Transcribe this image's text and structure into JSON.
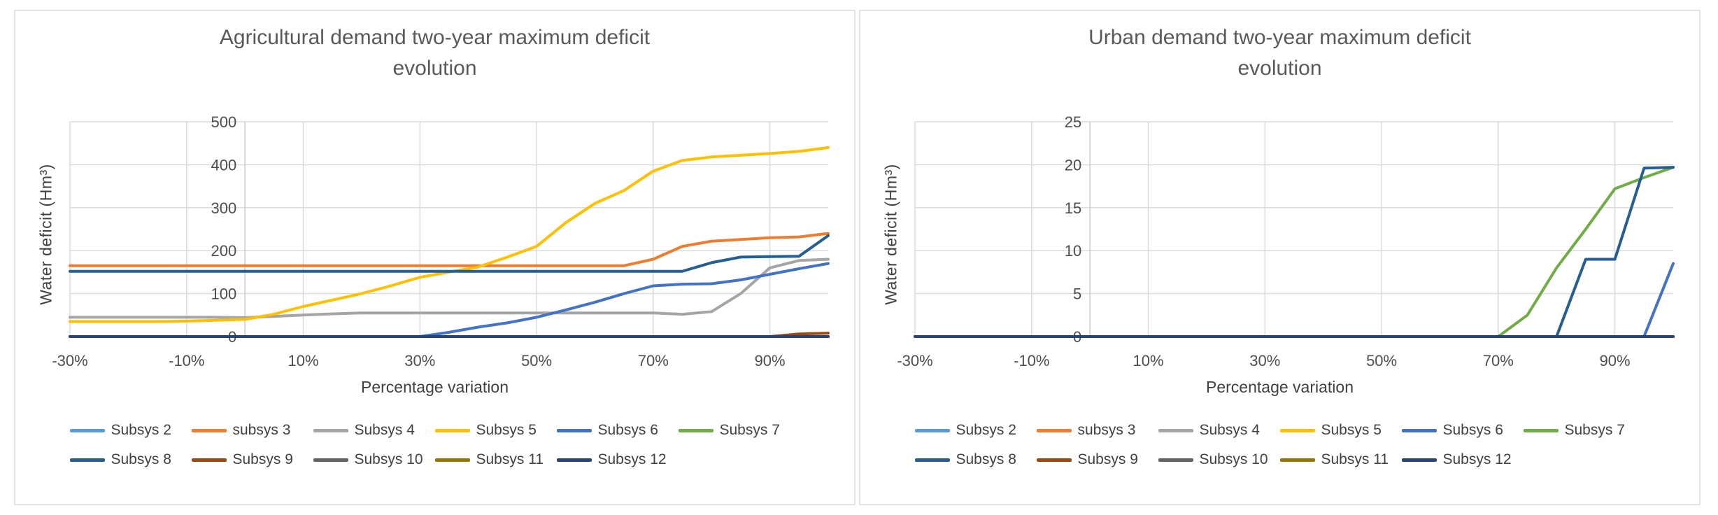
{
  "chart_data": [
    {
      "type": "line",
      "title": "Agricultural demand two-year maximum deficit evolution",
      "title_lines": [
        "Agricultural demand two-year maximum deficit",
        "evolution"
      ],
      "xlabel": "Percentage variation",
      "ylabel": "Water deficit (Hm³)",
      "ylim": [
        0,
        500
      ],
      "y_ticks": [
        0,
        100,
        200,
        300,
        400,
        500
      ],
      "x_tick_labels": [
        "-30%",
        "-10%",
        "10%",
        "30%",
        "50%",
        "70%",
        "90%"
      ],
      "y_axis_at": "0%",
      "grid": true,
      "legend_position": "bottom",
      "categories": [
        "-30%",
        "-25%",
        "-20%",
        "-15%",
        "-10%",
        "-5%",
        "0%",
        "5%",
        "10%",
        "15%",
        "20%",
        "25%",
        "30%",
        "35%",
        "40%",
        "45%",
        "50%",
        "55%",
        "60%",
        "65%",
        "70%",
        "75%",
        "80%",
        "85%",
        "90%",
        "95%",
        "100%"
      ],
      "series": [
        {
          "name": "Subsys 2",
          "color": "#5B9BD5",
          "values": [
            0,
            0,
            0,
            0,
            0,
            0,
            0,
            0,
            0,
            0,
            0,
            0,
            0,
            0,
            0,
            0,
            0,
            0,
            0,
            0,
            0,
            0,
            0,
            0,
            0,
            0,
            0
          ]
        },
        {
          "name": "subsys 3",
          "color": "#ED7D31",
          "values": [
            165,
            165,
            165,
            165,
            165,
            165,
            165,
            165,
            165,
            165,
            165,
            165,
            165,
            165,
            165,
            165,
            165,
            165,
            165,
            165,
            180,
            210,
            222,
            226,
            230,
            232,
            240
          ]
        },
        {
          "name": "Subsys 4",
          "color": "#A5A5A5",
          "values": [
            45,
            45,
            45,
            45,
            45,
            45,
            44,
            47,
            50,
            53,
            55,
            55,
            55,
            55,
            55,
            55,
            55,
            55,
            55,
            55,
            55,
            52,
            58,
            100,
            160,
            177,
            180
          ]
        },
        {
          "name": "Subsys 5",
          "color": "#FFC000",
          "values": [
            35,
            35,
            35,
            35,
            36,
            38,
            40,
            52,
            70,
            85,
            100,
            118,
            138,
            150,
            162,
            185,
            210,
            265,
            310,
            340,
            385,
            410,
            418,
            422,
            426,
            431,
            440
          ]
        },
        {
          "name": "Subsys 6",
          "color": "#4472C4",
          "values": [
            0,
            0,
            0,
            0,
            0,
            0,
            0,
            0,
            0,
            0,
            0,
            0,
            0,
            10,
            22,
            32,
            45,
            62,
            80,
            100,
            118,
            122,
            123,
            132,
            145,
            158,
            170
          ]
        },
        {
          "name": "Subsys 7",
          "color": "#70AD47",
          "values": [
            0,
            0,
            0,
            0,
            0,
            0,
            0,
            0,
            0,
            0,
            0,
            0,
            0,
            0,
            0,
            0,
            0,
            0,
            0,
            0,
            0,
            0,
            0,
            0,
            0,
            0,
            0
          ]
        },
        {
          "name": "Subsys 8",
          "color": "#255E91",
          "values": [
            152,
            152,
            152,
            152,
            152,
            152,
            152,
            152,
            152,
            152,
            152,
            152,
            152,
            152,
            152,
            152,
            152,
            152,
            152,
            152,
            152,
            152,
            172,
            185,
            186,
            187,
            235
          ]
        },
        {
          "name": "Subsys 9",
          "color": "#9E480E",
          "values": [
            0,
            0,
            0,
            0,
            0,
            0,
            0,
            0,
            0,
            0,
            0,
            0,
            0,
            0,
            0,
            0,
            0,
            0,
            0,
            0,
            0,
            0,
            0,
            0,
            0,
            6,
            8
          ]
        },
        {
          "name": "Subsys 10",
          "color": "#636363",
          "values": [
            0,
            0,
            0,
            0,
            0,
            0,
            0,
            0,
            0,
            0,
            0,
            0,
            0,
            0,
            0,
            0,
            0,
            0,
            0,
            0,
            0,
            0,
            0,
            0,
            0,
            0,
            0
          ]
        },
        {
          "name": "Subsys 11",
          "color": "#997300",
          "values": [
            0,
            0,
            0,
            0,
            0,
            0,
            0,
            0,
            0,
            0,
            0,
            0,
            0,
            0,
            0,
            0,
            0,
            0,
            0,
            0,
            0,
            0,
            0,
            0,
            0,
            0,
            0
          ]
        },
        {
          "name": "Subsys 12",
          "color": "#264478",
          "values": [
            0,
            0,
            0,
            0,
            0,
            0,
            0,
            0,
            0,
            0,
            0,
            0,
            0,
            0,
            0,
            0,
            0,
            0,
            0,
            0,
            0,
            0,
            0,
            0,
            0,
            0,
            0
          ]
        }
      ]
    },
    {
      "type": "line",
      "title": "Urban demand two-year maximum deficit evolution",
      "title_lines": [
        "Urban demand two-year maximum deficit",
        "evolution"
      ],
      "xlabel": "Percentage variation",
      "ylabel": "Water deficit (Hm³)",
      "ylim": [
        0,
        25
      ],
      "y_ticks": [
        0,
        5,
        10,
        15,
        20,
        25
      ],
      "x_tick_labels": [
        "-30%",
        "-10%",
        "10%",
        "30%",
        "50%",
        "70%",
        "90%"
      ],
      "y_axis_at": "0%",
      "grid": true,
      "legend_position": "bottom",
      "categories": [
        "-30%",
        "-25%",
        "-20%",
        "-15%",
        "-10%",
        "-5%",
        "0%",
        "5%",
        "10%",
        "15%",
        "20%",
        "25%",
        "30%",
        "35%",
        "40%",
        "45%",
        "50%",
        "55%",
        "60%",
        "65%",
        "70%",
        "75%",
        "80%",
        "85%",
        "90%",
        "95%",
        "100%"
      ],
      "series": [
        {
          "name": "Subsys 2",
          "color": "#5B9BD5",
          "values": [
            0,
            0,
            0,
            0,
            0,
            0,
            0,
            0,
            0,
            0,
            0,
            0,
            0,
            0,
            0,
            0,
            0,
            0,
            0,
            0,
            0,
            0,
            0,
            0,
            0,
            0,
            0
          ]
        },
        {
          "name": "subsys 3",
          "color": "#ED7D31",
          "values": [
            0,
            0,
            0,
            0,
            0,
            0,
            0,
            0,
            0,
            0,
            0,
            0,
            0,
            0,
            0,
            0,
            0,
            0,
            0,
            0,
            0,
            0,
            0,
            0,
            0,
            0,
            0
          ]
        },
        {
          "name": "Subsys 4",
          "color": "#A5A5A5",
          "values": [
            0,
            0,
            0,
            0,
            0,
            0,
            0,
            0,
            0,
            0,
            0,
            0,
            0,
            0,
            0,
            0,
            0,
            0,
            0,
            0,
            0,
            0,
            0,
            0,
            0,
            0,
            0
          ]
        },
        {
          "name": "Subsys 5",
          "color": "#FFC000",
          "values": [
            0,
            0,
            0,
            0,
            0,
            0,
            0,
            0,
            0,
            0,
            0,
            0,
            0,
            0,
            0,
            0,
            0,
            0,
            0,
            0,
            0,
            0,
            0,
            0,
            0,
            0,
            0
          ]
        },
        {
          "name": "Subsys 6",
          "color": "#4472C4",
          "values": [
            0,
            0,
            0,
            0,
            0,
            0,
            0,
            0,
            0,
            0,
            0,
            0,
            0,
            0,
            0,
            0,
            0,
            0,
            0,
            0,
            0,
            0,
            0,
            0,
            0,
            0,
            8.5
          ]
        },
        {
          "name": "Subsys 7",
          "color": "#70AD47",
          "values": [
            0,
            0,
            0,
            0,
            0,
            0,
            0,
            0,
            0,
            0,
            0,
            0,
            0,
            0,
            0,
            0,
            0,
            0,
            0,
            0,
            0,
            2.5,
            8,
            12.5,
            17.2,
            18.5,
            19.7
          ]
        },
        {
          "name": "Subsys 8",
          "color": "#255E91",
          "values": [
            0,
            0,
            0,
            0,
            0,
            0,
            0,
            0,
            0,
            0,
            0,
            0,
            0,
            0,
            0,
            0,
            0,
            0,
            0,
            0,
            0,
            0,
            0,
            9,
            9,
            19.6,
            19.7
          ]
        },
        {
          "name": "Subsys 9",
          "color": "#9E480E",
          "values": [
            0,
            0,
            0,
            0,
            0,
            0,
            0,
            0,
            0,
            0,
            0,
            0,
            0,
            0,
            0,
            0,
            0,
            0,
            0,
            0,
            0,
            0,
            0,
            0,
            0,
            0,
            0
          ]
        },
        {
          "name": "Subsys 10",
          "color": "#636363",
          "values": [
            0,
            0,
            0,
            0,
            0,
            0,
            0,
            0,
            0,
            0,
            0,
            0,
            0,
            0,
            0,
            0,
            0,
            0,
            0,
            0,
            0,
            0,
            0,
            0,
            0,
            0,
            0
          ]
        },
        {
          "name": "Subsys 11",
          "color": "#997300",
          "values": [
            0,
            0,
            0,
            0,
            0,
            0,
            0,
            0,
            0,
            0,
            0,
            0,
            0,
            0,
            0,
            0,
            0,
            0,
            0,
            0,
            0,
            0,
            0,
            0,
            0,
            0,
            0
          ]
        },
        {
          "name": "Subsys 12",
          "color": "#264478",
          "values": [
            0,
            0,
            0,
            0,
            0,
            0,
            0,
            0,
            0,
            0,
            0,
            0,
            0,
            0,
            0,
            0,
            0,
            0,
            0,
            0,
            0,
            0,
            0,
            0,
            0,
            0,
            0
          ]
        }
      ]
    }
  ]
}
